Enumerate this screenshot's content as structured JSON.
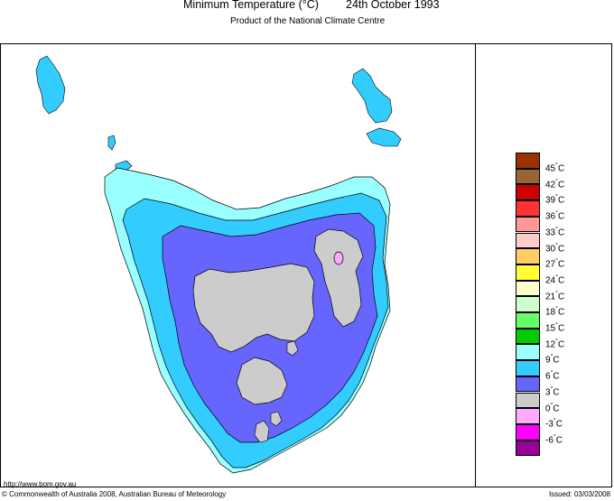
{
  "header": {
    "title": "Minimum Temperature (°C)",
    "date": "24th October 1993",
    "subtitle": "Product of the National Climate Centre"
  },
  "legend": [
    {
      "label": "45",
      "color": "#993300"
    },
    {
      "label": "42",
      "color": "#996633"
    },
    {
      "label": "39",
      "color": "#cc0000"
    },
    {
      "label": "36",
      "color": "#ff3333"
    },
    {
      "label": "33",
      "color": "#ff9999"
    },
    {
      "label": "30",
      "color": "#ffcccc"
    },
    {
      "label": "27",
      "color": "#ffcc66"
    },
    {
      "label": "24",
      "color": "#ffff33"
    },
    {
      "label": "21",
      "color": "#ffffcc"
    },
    {
      "label": "18",
      "color": "#ccffcc"
    },
    {
      "label": "15",
      "color": "#66ff66"
    },
    {
      "label": "12",
      "color": "#00cc00"
    },
    {
      "label": "9",
      "color": "#99ffff"
    },
    {
      "label": "6",
      "color": "#33ccff"
    },
    {
      "label": "3",
      "color": "#6666ff"
    },
    {
      "label": "0",
      "color": "#cccccc"
    },
    {
      "label": "-3",
      "color": "#ffaaff"
    },
    {
      "label": "-6",
      "color": "#ff00ff"
    },
    {
      "label": "",
      "color": "#990099"
    }
  ],
  "legend_unit": "°C",
  "map_colors": {
    "band_9": "#99ffff",
    "band_6": "#33ccff",
    "band_3": "#6666ff",
    "band_0": "#cccccc",
    "band_neg3": "#ffaaff"
  },
  "footer": {
    "url": "http://www.bom.gov.au",
    "copyright": "© Commonwealth of Australia 2008, Australian Bureau of Meteorology",
    "issued": "Issued: 03/03/2008"
  }
}
